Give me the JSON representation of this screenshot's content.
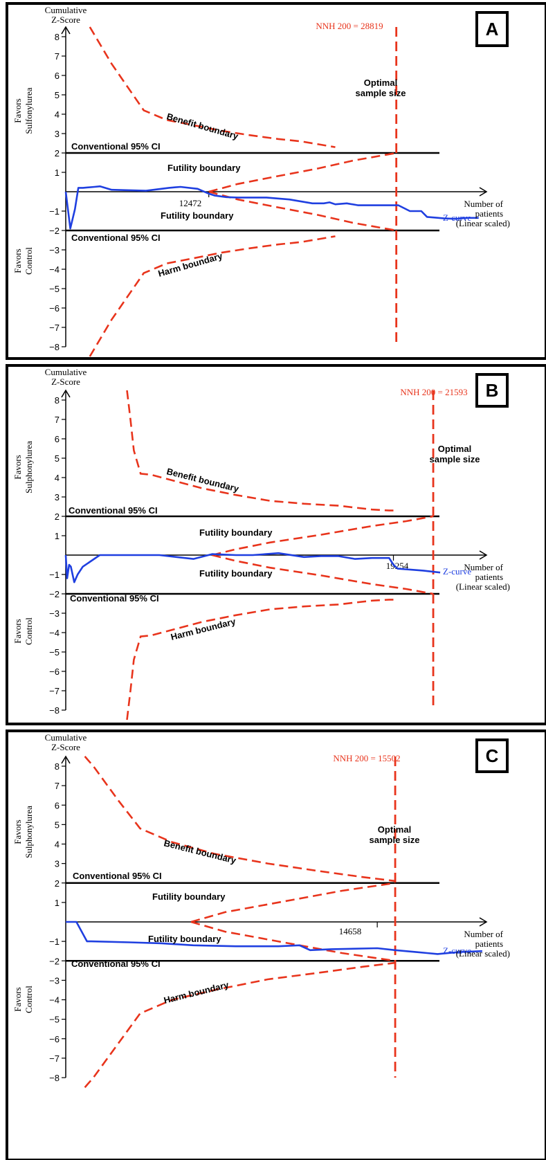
{
  "colors": {
    "boundary": "#e8341c",
    "zcurve": "#1f3fe0",
    "ci": "#000000",
    "axis": "#000000"
  },
  "chart_data": [
    {
      "panel_letter": "A",
      "type": "line",
      "ylabel": "Cumulative Z-Score",
      "favors_top": [
        "Favors",
        "Sulfonylurea"
      ],
      "favors_bottom": [
        "Favors",
        "Control"
      ],
      "xlabel": [
        "Number of",
        "patients",
        "(Linear scaled)"
      ],
      "ylim": [
        -8,
        8
      ],
      "y_ticks": [
        8,
        7,
        6,
        5,
        4,
        3,
        2,
        1,
        -1,
        -2,
        -3,
        -4,
        -5,
        -6,
        -7,
        -8
      ],
      "y_tick_labels": [
        "8",
        "7",
        "6",
        "5",
        "4",
        "3",
        "2",
        "1",
        "−1",
        "−2",
        "−3",
        "−4",
        "−5",
        "−6",
        "−7",
        "−8"
      ],
      "x_marker": {
        "value": 12472,
        "label": "12472"
      },
      "nnh": {
        "value": 28819,
        "label": "NNH 200 = 28819"
      },
      "optimal_label": [
        "Optimal",
        "sample size"
      ],
      "ci_labels": [
        "Conventional 95% CI",
        "Conventional 95% CI"
      ],
      "boundary_labels": {
        "benefit": "Benefit boundary",
        "harm": "Harm boundary",
        "futility_upper": "Futility boundary",
        "futility_lower": "Futility boundary"
      },
      "zcurve_label": "Z-curve",
      "xmax": 36500,
      "benefit": {
        "x": [
          2100,
          2600,
          4000,
          6800,
          8800,
          11000,
          13500,
          16000,
          18500,
          20500,
          22000,
          23500
        ],
        "y": [
          8.5,
          8.0,
          6.6,
          4.2,
          3.7,
          3.45,
          3.15,
          2.92,
          2.72,
          2.6,
          2.45,
          2.3
        ]
      },
      "harm": {
        "x": [
          2100,
          2600,
          4000,
          6800,
          8800,
          11000,
          13500,
          16000,
          18500,
          20500,
          22000,
          23500
        ],
        "y": [
          -8.5,
          -8.0,
          -6.6,
          -4.2,
          -3.7,
          -3.45,
          -3.15,
          -2.92,
          -2.72,
          -2.6,
          -2.45,
          -2.3
        ]
      },
      "futility_upper": {
        "x": [
          12472,
          15000,
          18000,
          22000,
          25000,
          28819
        ],
        "y": [
          0,
          0.4,
          0.75,
          1.2,
          1.6,
          2.0
        ]
      },
      "futility_lower": {
        "x": [
          12472,
          15000,
          18000,
          22000,
          25000,
          28819
        ],
        "y": [
          0,
          -0.4,
          -0.75,
          -1.2,
          -1.6,
          -2.0
        ]
      },
      "zcurve": {
        "x": [
          0,
          400,
          800,
          1100,
          1500,
          2500,
          3000,
          4000,
          7000,
          9000,
          10000,
          11500,
          12472,
          13000,
          14000,
          15000,
          16500,
          17500,
          19500,
          21500,
          22500,
          23000,
          23500,
          24500,
          25500,
          27000,
          29000,
          30000,
          31000,
          31500,
          32500,
          33000,
          34000,
          35000,
          36000
        ],
        "y": [
          0,
          -1.9,
          -0.9,
          0.2,
          0.2,
          0.25,
          0.28,
          0.1,
          0.05,
          0.2,
          0.25,
          0.15,
          -0.1,
          -0.2,
          -0.28,
          -0.3,
          -0.3,
          -0.3,
          -0.4,
          -0.6,
          -0.6,
          -0.55,
          -0.65,
          -0.6,
          -0.7,
          -0.7,
          -0.7,
          -1.0,
          -1.0,
          -1.3,
          -1.35,
          -1.38,
          -1.4,
          -1.35,
          -1.35
        ]
      }
    },
    {
      "panel_letter": "B",
      "type": "line",
      "ylabel": "Cumulative Z-Score",
      "favors_top": [
        "Favors",
        "Sulphonylurea"
      ],
      "favors_bottom": [
        "Favors",
        "Control"
      ],
      "xlabel": [
        "Number of",
        "patients",
        "(Linear scaled)"
      ],
      "ylim": [
        -8,
        8
      ],
      "y_ticks": [
        8,
        7,
        6,
        5,
        4,
        3,
        2,
        1,
        -1,
        -2,
        -3,
        -4,
        -5,
        -6,
        -7,
        -8
      ],
      "y_tick_labels": [
        "8",
        "7",
        "6",
        "5",
        "4",
        "3",
        "2",
        "1",
        "−1",
        "−2",
        "−3",
        "−4",
        "−5",
        "−6",
        "−7",
        "−8"
      ],
      "x_marker": {
        "value": 19254,
        "label": "19254"
      },
      "nnh": {
        "value": 21593,
        "label": "NNH 200 = 21593"
      },
      "optimal_label": [
        "Optimal",
        "sample size"
      ],
      "ci_labels": [
        "Conventional 95% CI",
        "Conventional 95% CI"
      ],
      "boundary_labels": {
        "benefit": "Benefit boundary",
        "harm": "Harm boundary",
        "futility_upper": "Futility boundary",
        "futility_lower": "Futility boundary"
      },
      "zcurve_label": "Z-curve",
      "xmax": 24600,
      "benefit": {
        "x": [
          3600,
          3800,
          4000,
          4400,
          5000,
          6500,
          8000,
          10000,
          12000,
          14000,
          16000,
          17000,
          18000,
          19000,
          19254
        ],
        "y": [
          8.5,
          7.0,
          5.4,
          4.2,
          4.15,
          3.8,
          3.45,
          3.1,
          2.8,
          2.65,
          2.55,
          2.45,
          2.35,
          2.3,
          2.3
        ]
      },
      "harm": {
        "x": [
          3600,
          3800,
          4000,
          4400,
          5000,
          6500,
          8000,
          10000,
          12000,
          14000,
          16000,
          17000,
          18000,
          19000,
          19254
        ],
        "y": [
          -8.5,
          -7.0,
          -5.4,
          -4.2,
          -4.15,
          -3.8,
          -3.45,
          -3.1,
          -2.8,
          -2.65,
          -2.55,
          -2.45,
          -2.35,
          -2.3,
          -2.3
        ]
      },
      "futility_upper": {
        "x": [
          8600,
          10000,
          12000,
          15000,
          18000,
          20000,
          21593
        ],
        "y": [
          0,
          0.3,
          0.65,
          1.05,
          1.5,
          1.75,
          2.0
        ]
      },
      "futility_lower": {
        "x": [
          8600,
          10000,
          12000,
          15000,
          18000,
          20000,
          21593
        ],
        "y": [
          0,
          -0.3,
          -0.65,
          -1.05,
          -1.5,
          -1.75,
          -2.0
        ]
      },
      "zcurve": {
        "x": [
          0,
          80,
          200,
          300,
          500,
          700,
          1000,
          2000,
          3000,
          4000,
          5500,
          6500,
          7500,
          8600,
          10000,
          11000,
          12500,
          14000,
          15000,
          16000,
          17000,
          18000,
          19000,
          19254,
          19500,
          21000,
          22000
        ],
        "y": [
          0,
          -1.2,
          -0.5,
          -0.6,
          -1.4,
          -1.0,
          -0.6,
          0.0,
          0.0,
          0.0,
          0.0,
          -0.1,
          -0.2,
          0.05,
          0.0,
          0.0,
          0.1,
          -0.1,
          -0.05,
          -0.05,
          -0.2,
          -0.15,
          -0.15,
          -0.5,
          -0.7,
          -0.8,
          -0.9
        ]
      }
    },
    {
      "panel_letter": "C",
      "type": "line",
      "ylabel": "Cumulative Z-Score",
      "favors_top": [
        "Favors",
        "Sulphonylurea"
      ],
      "favors_bottom": [
        "Favors",
        "Control"
      ],
      "xlabel": [
        "Number of",
        "patients",
        "(Linear scaled)"
      ],
      "ylim": [
        -8,
        8
      ],
      "y_ticks": [
        8,
        7,
        6,
        5,
        4,
        3,
        2,
        1,
        -1,
        -2,
        -3,
        -4,
        -5,
        -6,
        -7,
        -8
      ],
      "y_tick_labels": [
        "8",
        "7",
        "6",
        "5",
        "4",
        "3",
        "2",
        "1",
        "−1",
        "−2",
        "−3",
        "−4",
        "−5",
        "−6",
        "−7",
        "−8"
      ],
      "x_marker": {
        "value": 14658,
        "label": "14658"
      },
      "nnh": {
        "value": 15502,
        "label": "NNH 200 = 15502"
      },
      "optimal_label": [
        "Optimal",
        "sample size"
      ],
      "ci_labels": [
        "Conventional 95% CI",
        "Conventional 95% CI"
      ],
      "boundary_labels": {
        "benefit": "Benefit boundary",
        "harm": "Harm boundary",
        "futility_upper": "Futility boundary",
        "futility_lower": "Futility boundary"
      },
      "zcurve_label": "Z-curve",
      "xmax": 19700,
      "benefit": {
        "x": [
          900,
          1300,
          2500,
          3500,
          5000,
          7000,
          9500,
          12000,
          14000,
          15502
        ],
        "y": [
          8.5,
          8.0,
          6.2,
          4.8,
          4.1,
          3.5,
          3.0,
          2.6,
          2.3,
          2.1
        ]
      },
      "harm": {
        "x": [
          900,
          1300,
          2500,
          3500,
          5000,
          7000,
          9500,
          12000,
          14000,
          15502
        ],
        "y": [
          -8.5,
          -8.0,
          -6.2,
          -4.7,
          -4.0,
          -3.5,
          -2.95,
          -2.6,
          -2.3,
          -2.1
        ]
      },
      "futility_upper": {
        "x": [
          5900,
          7500,
          9000,
          11000,
          13000,
          15502
        ],
        "y": [
          0,
          0.5,
          0.8,
          1.2,
          1.6,
          2.0
        ]
      },
      "futility_lower": {
        "x": [
          5900,
          7500,
          9000,
          11000,
          13000,
          15502
        ],
        "y": [
          0,
          -0.5,
          -0.8,
          -1.2,
          -1.6,
          -2.0
        ]
      },
      "zcurve": {
        "x": [
          0,
          500,
          1000,
          1200,
          3000,
          4500,
          6000,
          8000,
          10000,
          11000,
          11500,
          12500,
          14658,
          15500,
          16500,
          17000,
          17500,
          18500,
          19600
        ],
        "y": [
          0,
          0,
          -1.0,
          -1.0,
          -1.05,
          -1.1,
          -1.2,
          -1.25,
          -1.25,
          -1.2,
          -1.45,
          -1.4,
          -1.35,
          -1.45,
          -1.55,
          -1.6,
          -1.65,
          -1.55,
          -1.5
        ]
      }
    }
  ]
}
